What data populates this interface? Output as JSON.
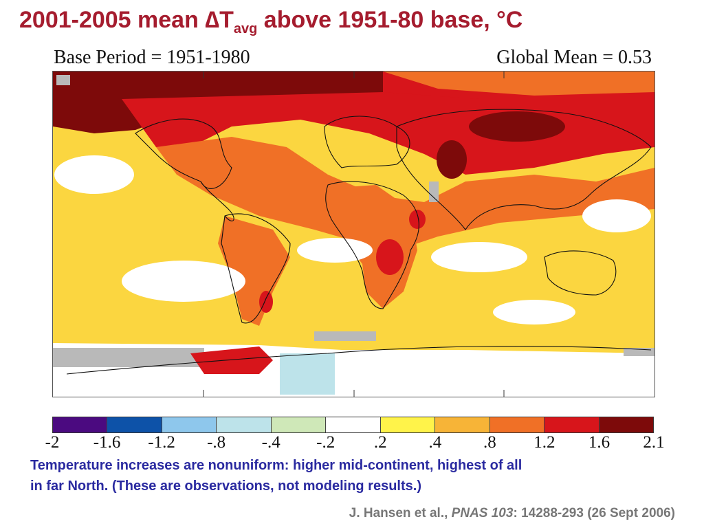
{
  "slide": {
    "title_main": "2001-2005 mean ∆T",
    "title_sub": "avg",
    "title_rest": " above 1951-80 base, °C"
  },
  "map": {
    "header_left": "Base Period = 1951-1980",
    "header_right": "Global Mean = 0.53",
    "description": "Global surface temperature anomaly map; strongest warming over high northern latitudes and continental interiors"
  },
  "legend": {
    "ticks": [
      "-2",
      "-1.6",
      "-1.2",
      "-.8",
      "-.4",
      "-.2",
      ".2",
      ".4",
      ".8",
      "1.2",
      "1.6",
      "2.1"
    ],
    "colors": [
      "#4b0a80",
      "#0d52a8",
      "#8ec7ec",
      "#bde3ea",
      "#cfe8b8",
      "#ffffff",
      "#fff34a",
      "#f7b437",
      "#f07026",
      "#d7151b",
      "#7d0a0a"
    ]
  },
  "caption": {
    "line1": "Temperature increases are nonuniform:  higher mid-continent, highest of all",
    "line2": "in far North.  (These are observations, not modeling results.)"
  },
  "citation": {
    "authors": "J. Hansen et al., ",
    "journal": "PNAS 103",
    "details": ": 14288-293 (26 Sept 2006)"
  }
}
